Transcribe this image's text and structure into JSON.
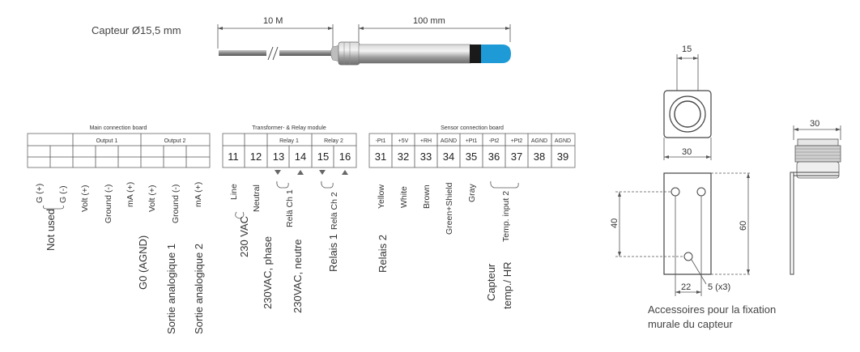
{
  "sensor": {
    "caption": "Capteur Ø15,5 mm",
    "cable_length": "10 M",
    "probe_length": "100 mm"
  },
  "main_board": {
    "title": "Main connection board",
    "output1": "Output 1",
    "output2": "Output 2",
    "terminal_labels": [
      "G (+)",
      "G (-)",
      "Volt (+)",
      "Ground (-)",
      "mA (+)",
      "Volt (+)",
      "Ground (-)",
      "mA (+)"
    ],
    "group_labels": [
      "Not used",
      "G0 (AGND)",
      "Sortie analogique 1",
      "Sortie analogique 2"
    ]
  },
  "relay_module": {
    "title": "Transformer- & Relay module",
    "relay1": "Relay 1",
    "relay2": "Relay 2",
    "terminals": [
      "11",
      "12",
      "13",
      "14",
      "15",
      "16"
    ],
    "terminal_labels": [
      "Line",
      "Neutral",
      "Relä Ch 1",
      "Relä Ch 2"
    ],
    "group_labels": [
      "230 VAC",
      "230VAC, phase",
      "230VAC, neutre",
      "Relais 1",
      "Relais 2"
    ]
  },
  "sensor_board": {
    "title": "Sensor connection board",
    "signals": [
      "-Pt1",
      "+5V",
      "+RH",
      "AGND",
      "+Pt1",
      "-Pt2",
      "+Pt2",
      "AGND",
      "AGND"
    ],
    "terminals": [
      "31",
      "32",
      "33",
      "34",
      "35",
      "36",
      "37",
      "38",
      "39"
    ],
    "wire_labels": [
      "Yellow",
      "White",
      "Brown",
      "Green+Shield",
      "Gray",
      "Temp. input 2"
    ],
    "capteur_label": "Capteur",
    "temp_hr_label": "temp./ HR"
  },
  "bracket": {
    "dims": [
      "15",
      "30",
      "30",
      "40",
      "60",
      "22"
    ],
    "hole_label": "5 (x3)",
    "caption_line1": "Accessoires pour la fixation",
    "caption_line2": "murale du capteur"
  }
}
